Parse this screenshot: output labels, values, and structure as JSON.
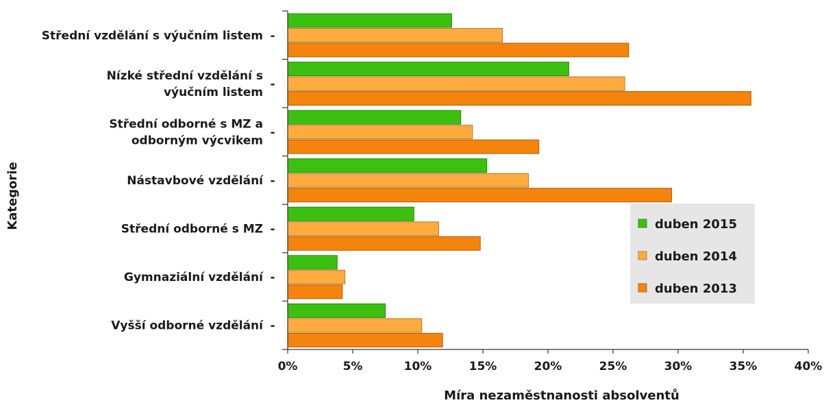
{
  "chart_data": {
    "type": "bar",
    "orientation": "horizontal",
    "categories": [
      "Střední vzdělání s výučním listem",
      "Nízké střední vzdělání s výučním listem",
      "Střední odborné s MZ a odborným výcvikem",
      "Nástavbové vzdělání",
      "Střední odborné s MZ",
      "Gymnaziální vzdělání",
      "Vyšší odborné vzdělání"
    ],
    "category_lines": [
      [
        "Střední vzdělání s výučním listem"
      ],
      [
        "Nízké střední vzdělání s",
        "výučním listem"
      ],
      [
        "Střední odborné s MZ a",
        "odborným výcvikem"
      ],
      [
        "Nástavbové vzdělání"
      ],
      [
        "Střední odborné s MZ"
      ],
      [
        "Gymnaziální vzdělání"
      ],
      [
        "Vyšší odborné vzdělání"
      ]
    ],
    "series": [
      {
        "name": "duben 2015",
        "color": "#3cc010",
        "values": [
          12.6,
          21.6,
          13.3,
          15.3,
          9.7,
          3.8,
          7.5
        ]
      },
      {
        "name": "duben 2014",
        "color": "#ffab40",
        "values": [
          16.5,
          25.9,
          14.2,
          18.5,
          11.6,
          4.4,
          10.3
        ]
      },
      {
        "name": "duben 2013",
        "color": "#f5840c",
        "values": [
          26.2,
          35.6,
          19.3,
          29.5,
          14.8,
          4.2,
          11.9
        ]
      }
    ],
    "xlabel": "Míra nezaměstnanosti absolventů",
    "ylabel": "Kategorie",
    "xlim": [
      0,
      40
    ],
    "xticks": [
      0,
      5,
      10,
      15,
      20,
      25,
      30,
      35,
      40
    ],
    "xtick_labels": [
      "0%",
      "5%",
      "10%",
      "15%",
      "20%",
      "25%",
      "30%",
      "35%",
      "40%"
    ],
    "grid": false,
    "legend": "right",
    "legend_background": "#e6e6e6"
  }
}
